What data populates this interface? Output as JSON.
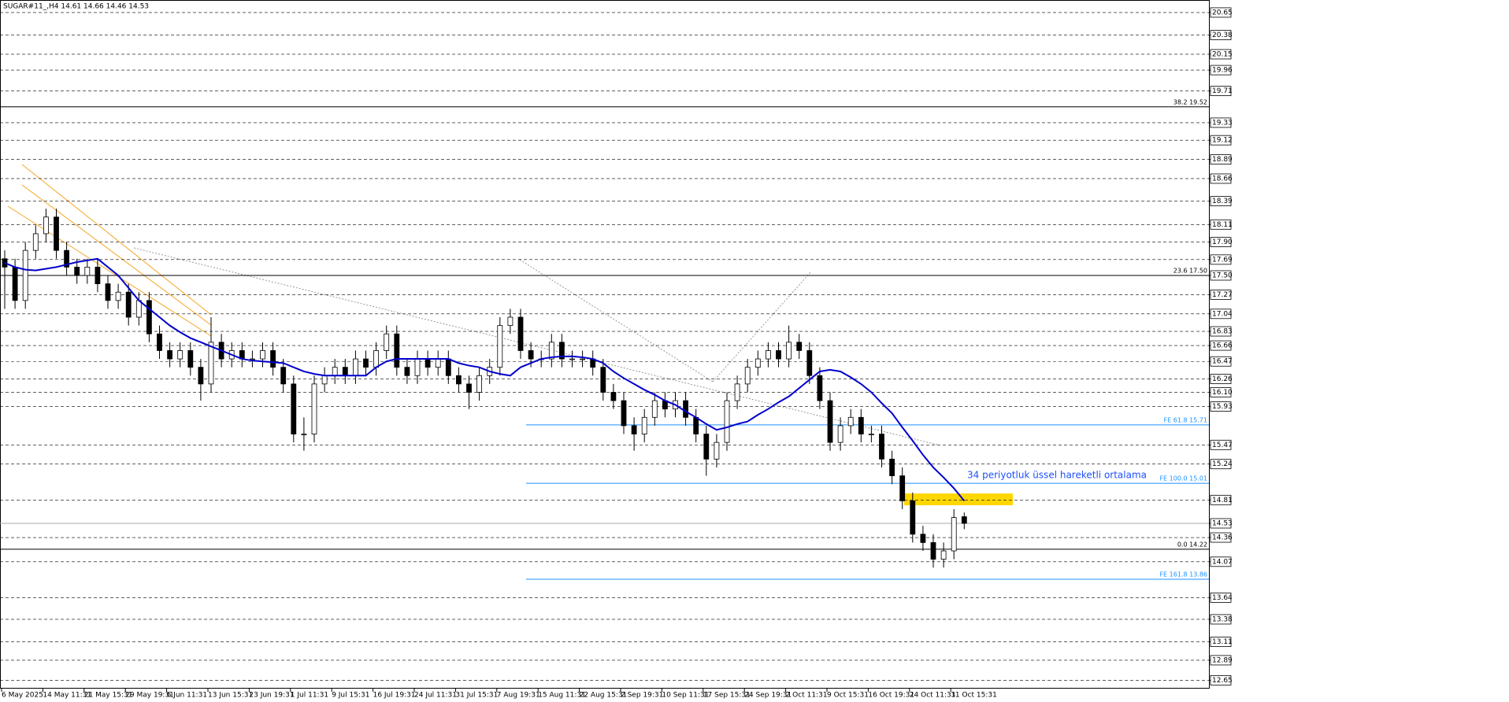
{
  "chart_data": {
    "type": "candlestick",
    "title": "SUGAR#11_,H4  14.61 14.66 14.46 14.53",
    "annotation": "34 periyotluk üssel hareketli ortalama",
    "x_labels": [
      "6 May 2025",
      "14 May 11:31",
      "21 May 15:31",
      "29 May 19:31",
      "6 Jun 11:31",
      "13 Jun 15:31",
      "23 Jun 19:31",
      "1 Jul 11:31",
      "9 Jul 15:31",
      "16 Jul 19:31",
      "24 Jul 11:31",
      "31 Jul 15:31",
      "7 Aug 19:31",
      "15 Aug 11:31",
      "22 Aug 15:31",
      "2 Sep 19:31",
      "10 Sep 11:31",
      "17 Sep 15:31",
      "24 Sep 19:31",
      "2 Oct 11:31",
      "9 Oct 15:31",
      "16 Oct 19:31",
      "24 Oct 11:31",
      "31 Oct 15:31"
    ],
    "ylim": [
      12.55,
      20.8
    ],
    "yticks": [
      20.65,
      20.38,
      20.15,
      19.96,
      19.71,
      19.33,
      19.12,
      18.89,
      18.66,
      18.39,
      18.11,
      {
        "value": 17.9,
        "label": "17.90"
      },
      17.69,
      {
        "value": 17.5,
        "label": "17.50"
      },
      17.27,
      17.04,
      16.83,
      16.66,
      16.47,
      16.26,
      {
        "value": 16.1,
        "label": "16.10"
      },
      15.93,
      15.47,
      15.24,
      14.81,
      14.53,
      14.36,
      14.07,
      13.64,
      13.38,
      13.11,
      12.89,
      12.65
    ],
    "grid": true,
    "current_price": 14.53,
    "levels": [
      {
        "label": "38.2 19.52",
        "value": 19.52,
        "color": "#000000"
      },
      {
        "label": "23.6 17.50",
        "value": 17.5,
        "color": "#000000"
      },
      {
        "label": "0.0 14.22",
        "value": 14.22,
        "color": "#000000"
      },
      {
        "label": "FE 61.8 15.71",
        "value": 15.71,
        "color": "#1e90ff"
      },
      {
        "label": "FE 100.0 15.01",
        "value": 15.01,
        "color": "#1e90ff"
      },
      {
        "label": "FE 161.8 13.86",
        "value": 13.86,
        "color": "#1e90ff"
      }
    ],
    "candles": {
      "open": [
        17.7,
        17.6,
        17.2,
        17.8,
        18.0,
        18.2,
        17.8,
        17.6,
        17.5,
        17.6,
        17.4,
        17.2,
        17.3,
        17.0,
        17.2,
        16.8,
        16.6,
        16.5,
        16.6,
        16.4,
        16.2,
        16.7,
        16.5,
        16.6,
        16.5,
        16.5,
        16.6,
        16.4,
        16.2,
        15.6,
        15.6,
        16.2,
        16.3,
        16.4,
        16.3,
        16.5,
        16.4,
        16.6,
        16.8,
        16.4,
        16.3,
        16.5,
        16.4,
        16.5,
        16.3,
        16.2,
        16.1,
        16.3,
        16.4,
        16.9,
        17.0,
        16.6,
        16.5,
        16.5,
        16.7,
        16.5,
        16.5,
        16.5,
        16.4,
        16.1,
        16.0,
        15.7,
        15.6,
        15.8,
        16.0,
        15.9,
        16.0,
        15.8,
        15.6,
        15.3,
        15.5,
        16.0,
        16.2,
        16.4,
        16.5,
        16.6,
        16.5,
        16.7,
        16.6,
        16.3,
        16.0,
        15.5,
        15.7,
        15.8,
        15.6,
        15.6,
        15.3,
        15.1,
        14.8,
        14.4,
        14.3,
        14.1,
        14.2,
        14.61
      ],
      "high": [
        17.8,
        17.7,
        17.9,
        18.1,
        18.3,
        18.3,
        17.9,
        17.7,
        17.7,
        17.7,
        17.5,
        17.4,
        17.4,
        17.3,
        17.3,
        16.9,
        16.7,
        16.7,
        16.7,
        16.5,
        17.0,
        16.8,
        16.7,
        16.7,
        16.6,
        16.7,
        16.7,
        16.5,
        16.3,
        15.8,
        16.3,
        16.4,
        16.5,
        16.5,
        16.6,
        16.6,
        16.7,
        16.9,
        16.9,
        16.5,
        16.6,
        16.6,
        16.6,
        16.6,
        16.4,
        16.3,
        16.4,
        16.5,
        17.0,
        17.1,
        17.1,
        16.7,
        16.6,
        16.8,
        16.8,
        16.6,
        16.6,
        16.6,
        16.5,
        16.2,
        16.1,
        15.8,
        15.9,
        16.1,
        16.1,
        16.1,
        16.1,
        15.9,
        15.7,
        15.6,
        16.1,
        16.3,
        16.5,
        16.6,
        16.7,
        16.7,
        16.9,
        16.8,
        16.7,
        16.4,
        16.1,
        15.8,
        15.9,
        15.9,
        15.7,
        15.7,
        15.4,
        15.2,
        14.9,
        14.5,
        14.4,
        14.3,
        14.7,
        14.66
      ],
      "low": [
        17.1,
        17.1,
        17.1,
        17.7,
        17.9,
        17.7,
        17.5,
        17.4,
        17.4,
        17.3,
        17.1,
        17.1,
        16.9,
        16.9,
        16.7,
        16.5,
        16.4,
        16.4,
        16.3,
        16.0,
        16.1,
        16.4,
        16.4,
        16.4,
        16.4,
        16.4,
        16.3,
        16.1,
        15.5,
        15.4,
        15.5,
        16.1,
        16.2,
        16.2,
        16.2,
        16.3,
        16.3,
        16.5,
        16.3,
        16.2,
        16.2,
        16.3,
        16.3,
        16.2,
        16.1,
        15.9,
        16.0,
        16.2,
        16.3,
        16.8,
        16.5,
        16.4,
        16.4,
        16.4,
        16.4,
        16.4,
        16.4,
        16.3,
        16.0,
        15.9,
        15.6,
        15.4,
        15.5,
        15.7,
        15.8,
        15.8,
        15.7,
        15.5,
        15.1,
        15.2,
        15.4,
        15.9,
        16.1,
        16.3,
        16.4,
        16.4,
        16.4,
        16.5,
        16.2,
        15.9,
        15.4,
        15.4,
        15.6,
        15.5,
        15.5,
        15.2,
        15.0,
        14.7,
        14.3,
        14.2,
        14.0,
        14.0,
        14.1,
        14.46
      ],
      "close": [
        17.6,
        17.2,
        17.8,
        18.0,
        18.2,
        17.8,
        17.6,
        17.5,
        17.6,
        17.4,
        17.2,
        17.3,
        17.0,
        17.2,
        16.8,
        16.6,
        16.5,
        16.6,
        16.4,
        16.2,
        16.7,
        16.5,
        16.6,
        16.5,
        16.5,
        16.6,
        16.4,
        16.2,
        15.6,
        15.6,
        16.2,
        16.3,
        16.4,
        16.3,
        16.5,
        16.4,
        16.6,
        16.8,
        16.4,
        16.3,
        16.5,
        16.4,
        16.5,
        16.3,
        16.2,
        16.1,
        16.3,
        16.4,
        16.9,
        17.0,
        16.6,
        16.5,
        16.5,
        16.7,
        16.5,
        16.5,
        16.5,
        16.4,
        16.1,
        16.0,
        15.7,
        15.6,
        15.8,
        16.0,
        15.9,
        16.0,
        15.8,
        15.6,
        15.3,
        15.5,
        16.0,
        16.2,
        16.4,
        16.5,
        16.6,
        16.5,
        16.7,
        16.6,
        16.3,
        16.0,
        15.5,
        15.7,
        15.8,
        15.6,
        15.6,
        15.3,
        15.1,
        14.8,
        14.4,
        14.3,
        14.1,
        14.2,
        14.6,
        14.53
      ]
    },
    "ema": {
      "color": "#0000cd",
      "values": [
        17.65,
        17.6,
        17.57,
        17.56,
        17.58,
        17.6,
        17.63,
        17.66,
        17.68,
        17.7,
        17.6,
        17.5,
        17.35,
        17.2,
        17.1,
        17.0,
        16.9,
        16.82,
        16.75,
        16.7,
        16.65,
        16.6,
        16.55,
        16.5,
        16.48,
        16.47,
        16.46,
        16.45,
        16.4,
        16.35,
        16.32,
        16.3,
        16.3,
        16.3,
        16.3,
        16.3,
        16.4,
        16.47,
        16.5,
        16.5,
        16.5,
        16.5,
        16.5,
        16.5,
        16.45,
        16.42,
        16.4,
        16.35,
        16.32,
        16.3,
        16.4,
        16.45,
        16.5,
        16.52,
        16.53,
        16.53,
        16.52,
        16.5,
        16.45,
        16.35,
        16.27,
        16.2,
        16.13,
        16.07,
        16.0,
        15.95,
        15.87,
        15.8,
        15.72,
        15.65,
        15.68,
        15.72,
        15.75,
        15.83,
        15.9,
        15.98,
        16.05,
        16.15,
        16.25,
        16.35,
        16.37,
        16.35,
        16.28,
        16.2,
        16.1,
        15.97,
        15.85,
        15.68,
        15.52,
        15.35,
        15.2,
        15.08,
        14.95,
        14.8
      ]
    }
  }
}
